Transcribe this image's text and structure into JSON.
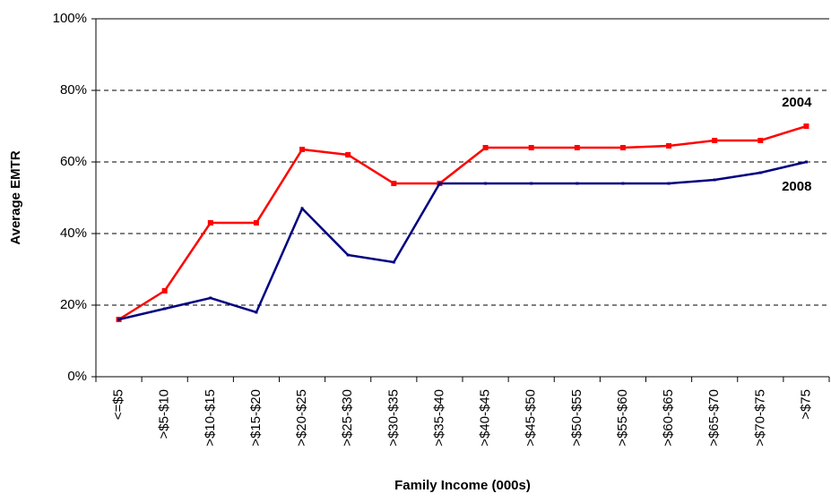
{
  "chart_data": {
    "type": "line",
    "x_label": "Family Income (000s)",
    "y_label": "Average EMTR",
    "categories": [
      "<=$5",
      ">$5-$10",
      ">$10-$15",
      ">$15-$20",
      ">$20-$25",
      ">$25-$30",
      ">$30-$35",
      ">$35-$40",
      ">$40-$45",
      ">$45-$50",
      ">$50-$55",
      ">$55-$60",
      ">$60-$65",
      ">$65-$70",
      ">$70-$75",
      ">$75"
    ],
    "series": [
      {
        "name": "2004",
        "color": "#ff0000",
        "values": [
          16,
          24,
          43,
          43,
          63.5,
          62,
          54,
          54,
          64,
          64,
          64,
          64,
          64.5,
          66,
          66,
          70
        ]
      },
      {
        "name": "2008",
        "color": "#000080",
        "values": [
          16,
          19,
          22,
          18,
          47,
          34,
          32,
          54,
          54,
          54,
          54,
          54,
          54,
          55,
          57,
          60
        ]
      }
    ],
    "ylim": [
      0,
      100
    ],
    "yticks": [
      {
        "value": 0,
        "label": "0%"
      },
      {
        "value": 20,
        "label": "20%"
      },
      {
        "value": 40,
        "label": "40%"
      },
      {
        "value": 60,
        "label": "60%"
      },
      {
        "value": 80,
        "label": "80%"
      },
      {
        "value": 100,
        "label": "100%"
      }
    ],
    "grid": true
  }
}
